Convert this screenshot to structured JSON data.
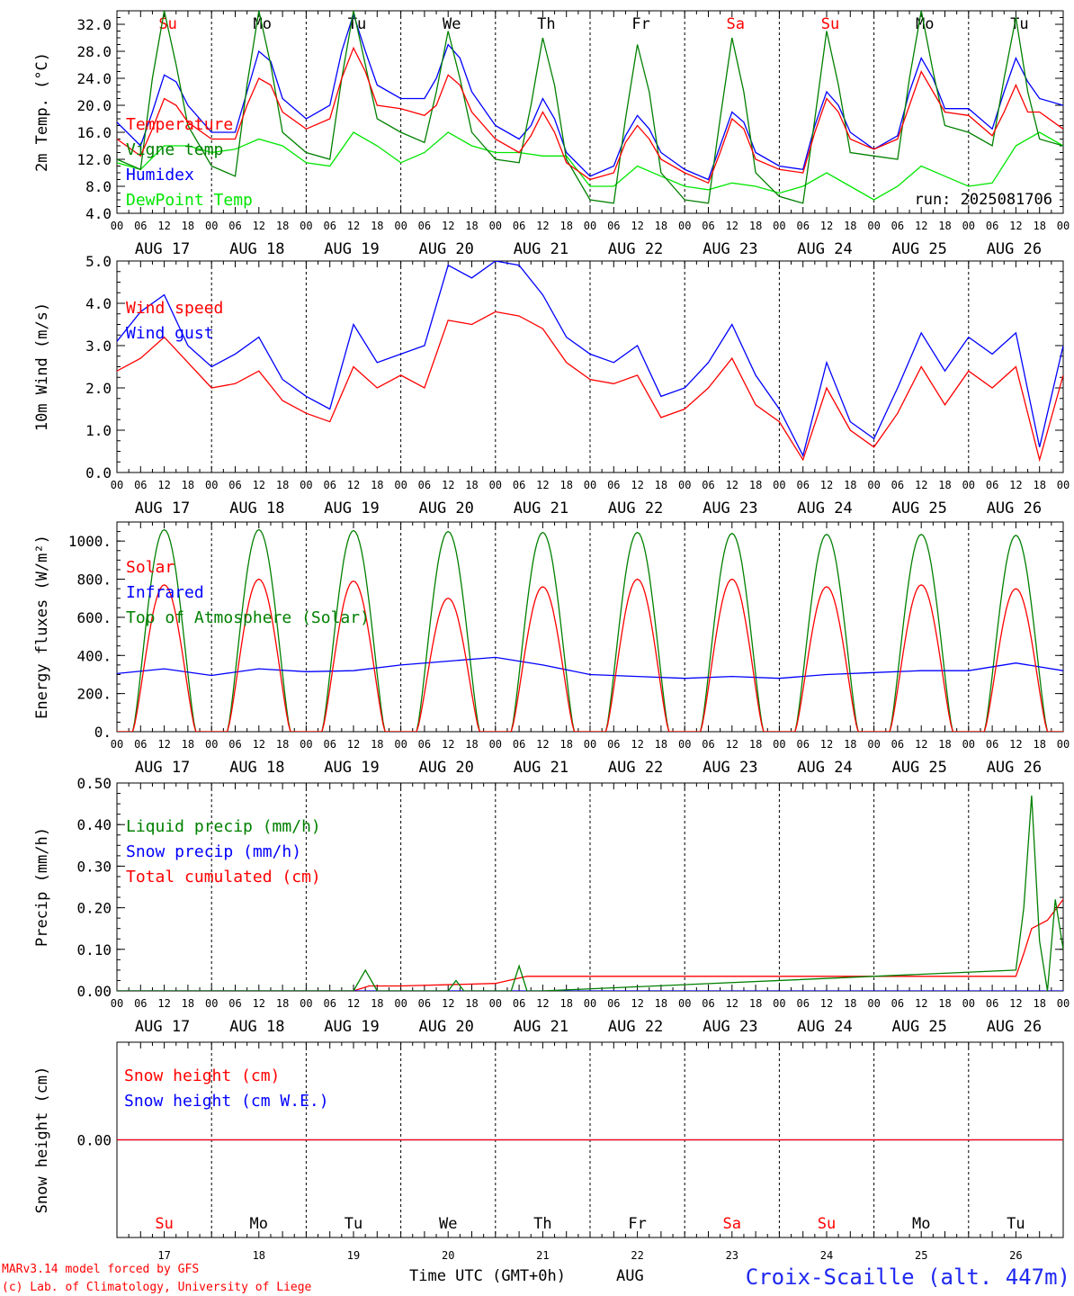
{
  "colors": {
    "red": "#ff0000",
    "green": "#008000",
    "blue": "#0000ff",
    "light_green": "#00e600",
    "black": "#000000",
    "title_blue": "#1e28f0"
  },
  "days": {
    "weekday_labels": [
      "Su",
      "Mo",
      "Tu",
      "We",
      "Th",
      "Fr",
      "Sa",
      "Su",
      "Mo",
      "Tu"
    ],
    "weekday_colors": [
      "red",
      "black",
      "black",
      "black",
      "black",
      "black",
      "red",
      "red",
      "black",
      "black"
    ],
    "date_labels": [
      "AUG 17",
      "AUG 18",
      "AUG 19",
      "AUG 20",
      "AUG 21",
      "AUG 22",
      "AUG 23",
      "AUG 24",
      "AUG 25",
      "AUG 26"
    ],
    "day_numbers": [
      "17",
      "18",
      "19",
      "20",
      "21",
      "22",
      "23",
      "24",
      "25",
      "26"
    ],
    "hour_labels": [
      "00",
      "06",
      "12",
      "18"
    ],
    "hour_end": "00"
  },
  "footer": {
    "model_line": "MARv3.14 model forced by GFS",
    "copyright_line": "(c) Lab. of Climatology, University of Liege",
    "time_axis_label": "Time UTC (GMT+0h)",
    "month": "AUG",
    "station": "Croix-Scaille (alt. 447m)"
  },
  "chart_data": [
    {
      "type": "line",
      "ylabel": "2m Temp. (°C)",
      "ylim": [
        4.0,
        34.0
      ],
      "y_ticks": [
        "32.0",
        "28.0",
        "24.0",
        "20.0",
        "16.0",
        "12.0",
        "8.0",
        "4.0"
      ],
      "x_range_hours": [
        0,
        240
      ],
      "run_label": "run: 2025081706",
      "series": [
        {
          "name": "Temperature",
          "color": "red",
          "x": [
            0,
            6,
            9,
            12,
            15,
            18,
            24,
            30,
            33,
            36,
            39,
            42,
            48,
            54,
            57,
            60,
            63,
            66,
            72,
            78,
            81,
            84,
            87,
            90,
            96,
            102,
            105,
            108,
            111,
            114,
            120,
            126,
            129,
            132,
            135,
            138,
            144,
            150,
            153,
            156,
            159,
            162,
            168,
            174,
            177,
            180,
            183,
            186,
            192,
            198,
            201,
            204,
            207,
            210,
            216,
            222,
            225,
            228,
            231,
            234,
            240
          ],
          "values": [
            15.0,
            12.5,
            16.5,
            21.0,
            20.0,
            17.5,
            15.0,
            15.0,
            20.0,
            24.0,
            23.0,
            19.0,
            16.5,
            18.0,
            24.0,
            28.5,
            25.0,
            20.0,
            19.5,
            18.5,
            20.0,
            24.5,
            23.0,
            19.0,
            15.0,
            13.0,
            15.5,
            19.0,
            16.0,
            11.5,
            9.0,
            10.0,
            14.5,
            17.0,
            15.0,
            12.0,
            10.0,
            8.5,
            13.0,
            18.0,
            16.5,
            12.0,
            10.5,
            10.0,
            16.0,
            21.0,
            19.0,
            15.0,
            13.5,
            15.0,
            20.0,
            25.0,
            22.0,
            19.0,
            18.5,
            15.5,
            19.0,
            23.0,
            19.0,
            19.0,
            16.5
          ]
        },
        {
          "name": "Vigne temp",
          "color": "green",
          "x": [
            0,
            6,
            9,
            12,
            15,
            18,
            24,
            30,
            33,
            36,
            39,
            42,
            48,
            54,
            57,
            60,
            63,
            66,
            72,
            78,
            81,
            84,
            87,
            90,
            96,
            102,
            105,
            108,
            111,
            114,
            120,
            126,
            129,
            132,
            135,
            138,
            144,
            150,
            153,
            156,
            159,
            162,
            168,
            174,
            177,
            180,
            183,
            186,
            192,
            198,
            201,
            204,
            207,
            210,
            216,
            222,
            225,
            228,
            231,
            234,
            240
          ],
          "values": [
            12.0,
            10.5,
            24.0,
            34.0,
            26.0,
            17.0,
            11.0,
            9.5,
            23.0,
            34.0,
            26.0,
            16.0,
            13.0,
            12.0,
            24.0,
            34.0,
            26.0,
            18.0,
            16.0,
            14.5,
            22.0,
            31.0,
            24.0,
            16.0,
            12.0,
            11.5,
            20.0,
            30.0,
            23.0,
            12.0,
            6.0,
            5.5,
            18.0,
            29.0,
            22.0,
            10.0,
            6.0,
            5.5,
            18.0,
            30.0,
            22.0,
            10.0,
            6.5,
            5.5,
            18.0,
            31.0,
            23.0,
            13.0,
            12.5,
            12.0,
            24.0,
            34.0,
            25.0,
            17.0,
            16.0,
            14.0,
            24.0,
            33.0,
            22.0,
            15.0,
            14.0
          ]
        },
        {
          "name": "Humidex",
          "color": "blue",
          "x": [
            0,
            6,
            9,
            12,
            15,
            18,
            24,
            30,
            33,
            36,
            39,
            42,
            48,
            54,
            57,
            60,
            63,
            66,
            72,
            78,
            81,
            84,
            87,
            90,
            96,
            102,
            105,
            108,
            111,
            114,
            120,
            126,
            129,
            132,
            135,
            138,
            144,
            150,
            153,
            156,
            159,
            162,
            168,
            174,
            177,
            180,
            183,
            186,
            192,
            198,
            201,
            204,
            207,
            210,
            216,
            222,
            225,
            228,
            231,
            234,
            240
          ],
          "values": [
            17.5,
            14.0,
            19.0,
            24.5,
            23.5,
            20.0,
            16.0,
            16.0,
            22.0,
            28.0,
            26.5,
            21.0,
            18.0,
            20.0,
            28.0,
            33.5,
            28.0,
            23.0,
            21.0,
            21.0,
            24.0,
            29.0,
            27.0,
            22.0,
            17.0,
            15.0,
            17.0,
            21.0,
            18.0,
            13.0,
            9.5,
            11.0,
            15.5,
            18.5,
            16.5,
            13.0,
            10.5,
            9.0,
            14.0,
            19.0,
            17.5,
            13.0,
            11.0,
            10.5,
            17.0,
            22.0,
            20.0,
            16.0,
            13.5,
            15.5,
            22.0,
            27.0,
            24.0,
            19.5,
            19.5,
            16.5,
            22.0,
            27.0,
            23.5,
            21.0,
            20.0
          ]
        },
        {
          "name": "DewPoint Temp",
          "color": "light_green",
          "x": [
            0,
            6,
            12,
            18,
            24,
            30,
            36,
            42,
            48,
            54,
            60,
            66,
            72,
            78,
            84,
            90,
            96,
            102,
            108,
            114,
            120,
            126,
            132,
            138,
            144,
            150,
            156,
            162,
            168,
            174,
            180,
            186,
            192,
            198,
            204,
            210,
            216,
            222,
            228,
            234,
            240
          ],
          "values": [
            11.5,
            10.5,
            14.0,
            14.0,
            13.0,
            13.5,
            15.0,
            14.0,
            11.5,
            11.0,
            16.0,
            14.0,
            11.5,
            13.0,
            16.0,
            14.0,
            13.0,
            13.0,
            12.5,
            12.5,
            8.0,
            8.0,
            11.0,
            9.5,
            8.0,
            7.5,
            8.5,
            8.0,
            7.0,
            8.0,
            10.0,
            8.0,
            6.0,
            8.0,
            11.0,
            9.5,
            8.0,
            8.5,
            14.0,
            16.0,
            14.0
          ]
        }
      ]
    },
    {
      "type": "line",
      "ylabel": "10m Wind (m/s)",
      "ylim": [
        0.0,
        5.0
      ],
      "y_ticks": [
        "5.0",
        "4.0",
        "3.0",
        "2.0",
        "1.0",
        "0.0"
      ],
      "x_range_hours": [
        0,
        240
      ],
      "series": [
        {
          "name": "Wind speed",
          "color": "red",
          "x": [
            0,
            6,
            12,
            18,
            24,
            30,
            36,
            42,
            48,
            54,
            60,
            66,
            72,
            78,
            84,
            90,
            96,
            102,
            108,
            114,
            120,
            126,
            132,
            138,
            144,
            150,
            156,
            162,
            168,
            174,
            180,
            186,
            192,
            198,
            204,
            210,
            216,
            222,
            228,
            234,
            240
          ],
          "values": [
            2.4,
            2.7,
            3.2,
            2.6,
            2.0,
            2.1,
            2.4,
            1.7,
            1.4,
            1.2,
            2.5,
            2.0,
            2.3,
            2.0,
            3.6,
            3.5,
            3.8,
            3.7,
            3.4,
            2.6,
            2.2,
            2.1,
            2.3,
            1.3,
            1.5,
            2.0,
            2.7,
            1.6,
            1.2,
            0.3,
            2.0,
            1.0,
            0.6,
            1.4,
            2.5,
            1.6,
            2.4,
            2.0,
            2.5,
            0.3,
            2.3
          ]
        },
        {
          "name": "Wind gust",
          "color": "blue",
          "x": [
            0,
            6,
            12,
            18,
            24,
            30,
            36,
            42,
            48,
            54,
            60,
            66,
            72,
            78,
            84,
            90,
            96,
            102,
            108,
            114,
            120,
            126,
            132,
            138,
            144,
            150,
            156,
            162,
            168,
            174,
            180,
            186,
            192,
            198,
            204,
            210,
            216,
            222,
            228,
            234,
            240
          ],
          "values": [
            3.1,
            3.8,
            4.2,
            3.0,
            2.5,
            2.8,
            3.2,
            2.2,
            1.8,
            1.5,
            3.5,
            2.6,
            2.8,
            3.0,
            4.9,
            4.6,
            5.0,
            4.9,
            4.2,
            3.2,
            2.8,
            2.6,
            3.0,
            1.8,
            2.0,
            2.6,
            3.5,
            2.3,
            1.5,
            0.4,
            2.6,
            1.2,
            0.8,
            2.0,
            3.3,
            2.4,
            3.2,
            2.8,
            3.3,
            0.6,
            3.0
          ]
        }
      ]
    },
    {
      "type": "line",
      "ylabel": "Energy fluxes (W/m²)",
      "ylim": [
        0,
        1100
      ],
      "y_ticks": [
        "1000.",
        "800.",
        "600.",
        "400.",
        "200.",
        "0."
      ],
      "x_range_hours": [
        0,
        240
      ],
      "series": [
        {
          "name": "Solar",
          "color": "red",
          "daily_peaks": [
            770,
            800,
            790,
            700,
            760,
            800,
            800,
            760,
            770,
            750
          ]
        },
        {
          "name": "Infrared",
          "color": "blue",
          "x": [
            0,
            12,
            24,
            36,
            48,
            60,
            72,
            84,
            96,
            108,
            120,
            132,
            144,
            156,
            168,
            180,
            192,
            204,
            216,
            228,
            240
          ],
          "values": [
            305,
            330,
            295,
            330,
            315,
            320,
            350,
            370,
            390,
            350,
            300,
            290,
            280,
            290,
            280,
            300,
            310,
            320,
            320,
            360,
            320
          ]
        },
        {
          "name": "Top of Atmosphere (Solar)",
          "color": "green",
          "daily_peaks": [
            1060,
            1060,
            1055,
            1050,
            1045,
            1045,
            1040,
            1035,
            1035,
            1030
          ]
        }
      ]
    },
    {
      "type": "line",
      "ylabel": "Precip (mm/h)",
      "ylim": [
        0.0,
        0.5
      ],
      "y_ticks": [
        "0.50",
        "0.40",
        "0.30",
        "0.20",
        "0.10",
        "0.00"
      ],
      "x_range_hours": [
        0,
        240
      ],
      "series": [
        {
          "name": "Liquid precip (mm/h)",
          "color": "green",
          "x": [
            0,
            60,
            63,
            66,
            69,
            72,
            84,
            86,
            88,
            96,
            100,
            102,
            104,
            108,
            228,
            230,
            232,
            234,
            236,
            238,
            240
          ],
          "values": [
            0,
            0,
            0.05,
            0.0,
            0.0,
            0,
            0,
            0.025,
            0.0,
            0,
            0.0,
            0.06,
            0.0,
            0,
            0.05,
            0.2,
            0.47,
            0.12,
            0.0,
            0.22,
            0.1
          ]
        },
        {
          "name": "Snow precip (mm/h)",
          "color": "blue",
          "x": [
            0,
            240
          ],
          "values": [
            0,
            0
          ]
        },
        {
          "name": "Total cumulated (cm)",
          "color": "red",
          "x": [
            0,
            60,
            64,
            72,
            96,
            104,
            108,
            228,
            230,
            232,
            236,
            240
          ],
          "values": [
            0,
            0,
            0.012,
            0.012,
            0.018,
            0.035,
            0.035,
            0.035,
            0.09,
            0.15,
            0.17,
            0.22
          ]
        }
      ]
    },
    {
      "type": "line",
      "ylabel": "Snow height (cm)",
      "ylim": [
        -1.0,
        1.0
      ],
      "y_ticks": [
        "0.00"
      ],
      "x_range_hours": [
        0,
        240
      ],
      "series": [
        {
          "name": "Snow height (cm)",
          "color": "red",
          "x": [
            0,
            240
          ],
          "values": [
            0,
            0
          ]
        },
        {
          "name": "Snow height (cm W.E.)",
          "color": "blue",
          "x": [
            0,
            240
          ],
          "values": [
            0,
            0
          ]
        }
      ]
    }
  ]
}
